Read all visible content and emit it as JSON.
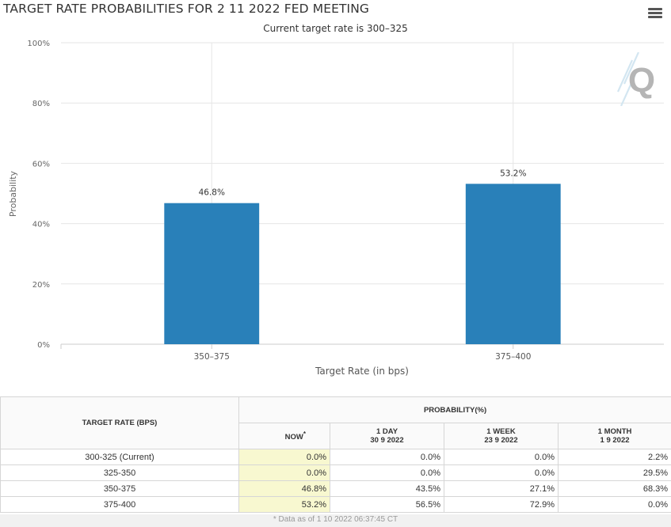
{
  "header": {
    "title": "TARGET RATE PROBABILITIES FOR 2 11 2022 FED MEETING",
    "subtitle": "Current target rate is 300–325"
  },
  "menu": {
    "icon": "hamburger-menu-icon"
  },
  "logo": {
    "icon": "q-logo-icon",
    "letter": "Q"
  },
  "chart_data": {
    "type": "bar",
    "title": "TARGET RATE PROBABILITIES FOR 2 11 2022 FED MEETING",
    "subtitle": "Current target rate is 300–325",
    "categories": [
      "350–375",
      "375–400"
    ],
    "values": [
      46.8,
      53.2
    ],
    "data_labels": [
      "46.8%",
      "53.2%"
    ],
    "xlabel": "Target Rate (in bps)",
    "ylabel": "Probability",
    "ylim": [
      0,
      100
    ],
    "yticks": [
      0,
      20,
      40,
      60,
      80,
      100
    ],
    "ytick_labels": [
      "0%",
      "20%",
      "40%",
      "60%",
      "80%",
      "100%"
    ],
    "grid": true,
    "bar_color": "#2980b9"
  },
  "table": {
    "target_header": "TARGET RATE (BPS)",
    "prob_header": "PROBABILITY(%)",
    "columns": [
      {
        "line1": "NOW",
        "line2": "*"
      },
      {
        "line1": "1 DAY",
        "line2": "30 9 2022"
      },
      {
        "line1": "1 WEEK",
        "line2": "23 9 2022"
      },
      {
        "line1": "1 MONTH",
        "line2": "1 9 2022"
      }
    ],
    "rows": [
      {
        "rate": "300-325 (Current)",
        "values": [
          "0.0%",
          "0.0%",
          "0.0%",
          "2.2%"
        ]
      },
      {
        "rate": "325-350",
        "values": [
          "0.0%",
          "0.0%",
          "0.0%",
          "29.5%"
        ]
      },
      {
        "rate": "350-375",
        "values": [
          "46.8%",
          "43.5%",
          "27.1%",
          "68.3%"
        ]
      },
      {
        "rate": "375-400",
        "values": [
          "53.2%",
          "56.5%",
          "72.9%",
          "0.0%"
        ]
      }
    ],
    "footnote": "* Data as of 1 10 2022 06:37:45 CT"
  },
  "colors": {
    "bar": "#2980b9",
    "now_highlight": "#f8f8d0",
    "grid": "#e6e6e6"
  }
}
